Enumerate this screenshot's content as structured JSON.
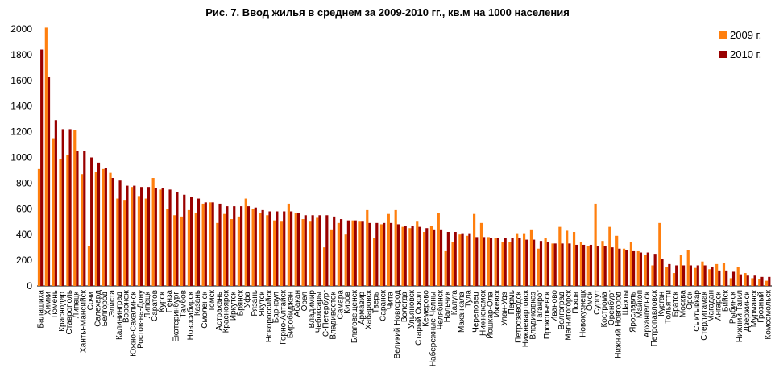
{
  "chart_data": {
    "type": "bar",
    "title": "Рис. 7. Ввод жилья в среднем за 2009-2010 гг., кв.м на 1000 населения",
    "xlabel": "",
    "ylabel": "",
    "ylim": [
      0,
      2000
    ],
    "yticks": [
      0,
      200,
      400,
      600,
      800,
      1000,
      1200,
      1400,
      1600,
      1800,
      2000
    ],
    "grid": false,
    "legend_position": "top-right",
    "colors": {
      "2009 г.": "#ff7f0e",
      "2010 г.": "#990000"
    },
    "categories": [
      "Балашиха",
      "Химки",
      "Тюмень",
      "Краснодар",
      "Ставрополь",
      "Липецк",
      "Ханты-Мансийск",
      "Сочи",
      "Салехард",
      "Белгород",
      "Элиста",
      "Калининград",
      "Воронеж",
      "Южно-Сахалинск",
      "Ростов-на-Дону",
      "Липецк",
      "Саратов",
      "Курск",
      "Пенза",
      "Екатеринбург",
      "Тамбов",
      "Новосибирск",
      "Казань",
      "Смоленск",
      "Томск",
      "Астрахань",
      "Красноярск",
      "Иркутск",
      "Брянск",
      "Уфа",
      "Рязань",
      "Якутск",
      "Новороссийск",
      "Барнаул",
      "Горно-Алтайск",
      "Биробиджан",
      "Абакан",
      "Орел",
      "Владимир",
      "Чебоксары",
      "С-Петербург",
      "Владивосток",
      "Самара",
      "Киров",
      "Благовещенск",
      "Армавир",
      "Хабаровск",
      "Тверь",
      "Саранск",
      "Чита",
      "Великий Новгород",
      "Вологда",
      "Ульяновск",
      "Старый Оскол",
      "Кемерово",
      "Набережные Челны",
      "Челябинск",
      "Нальчик",
      "Калуга",
      "Махачкала",
      "Тула",
      "Череповец",
      "Нижнекамск",
      "Йошкар-Ола",
      "Ижевск",
      "Улан-Удэ",
      "Пермь",
      "Петрозаводск",
      "Нижневартовск",
      "Владикавказ",
      "Таганрог",
      "Прокопьевск",
      "Иваново",
      "Волгоград",
      "Магнитогорск",
      "Псков",
      "Новокузнецк",
      "Омск",
      "Сургут",
      "Кострома",
      "Оренбург",
      "Нижний Новгород",
      "Шахты",
      "Ярославль",
      "Майкоп",
      "Архангельск",
      "Петропавловск",
      "Курган",
      "Тольятти",
      "Братск",
      "Москва",
      "Орск",
      "Сыктывкар",
      "Стерлитамак",
      "Магадан",
      "Ангарск",
      "Бийск",
      "Рыбинск",
      "Нижний Тагил",
      "Дзержинск",
      "Мурманск",
      "Грозный",
      "Комсомольск"
    ],
    "series": [
      {
        "name": "2009 г.",
        "values": [
          910,
          2010,
          1150,
          990,
          1020,
          1210,
          870,
          310,
          890,
          910,
          880,
          680,
          670,
          770,
          700,
          680,
          840,
          750,
          600,
          550,
          540,
          590,
          570,
          640,
          650,
          490,
          560,
          520,
          540,
          680,
          600,
          570,
          550,
          510,
          500,
          640,
          570,
          520,
          500,
          530,
          300,
          440,
          490,
          400,
          510,
          500,
          590,
          370,
          480,
          560,
          590,
          460,
          450,
          500,
          420,
          470,
          570,
          270,
          340,
          400,
          390,
          560,
          490,
          380,
          370,
          340,
          340,
          410,
          410,
          440,
          290,
          370,
          330,
          460,
          430,
          420,
          340,
          310,
          640,
          350,
          460,
          390,
          290,
          340,
          270,
          240,
          160,
          490,
          150,
          100,
          240,
          280,
          140,
          190,
          130,
          170,
          180,
          60,
          150,
          100,
          60,
          50,
          40
        ]
      },
      {
        "name": "2010 г.",
        "values": [
          1840,
          1630,
          1290,
          1220,
          1220,
          1050,
          1050,
          1000,
          960,
          920,
          840,
          820,
          780,
          780,
          770,
          770,
          760,
          760,
          750,
          730,
          710,
          690,
          680,
          650,
          650,
          640,
          620,
          620,
          620,
          620,
          610,
          590,
          580,
          580,
          580,
          580,
          570,
          550,
          550,
          550,
          550,
          540,
          520,
          510,
          510,
          500,
          490,
          490,
          490,
          490,
          480,
          470,
          470,
          460,
          450,
          440,
          440,
          420,
          420,
          410,
          410,
          380,
          380,
          370,
          370,
          370,
          370,
          370,
          360,
          360,
          350,
          340,
          330,
          330,
          330,
          320,
          320,
          320,
          310,
          310,
          300,
          290,
          280,
          270,
          260,
          260,
          250,
          210,
          170,
          160,
          160,
          160,
          160,
          160,
          150,
          120,
          120,
          110,
          90,
          80,
          80,
          70,
          70
        ]
      }
    ]
  }
}
